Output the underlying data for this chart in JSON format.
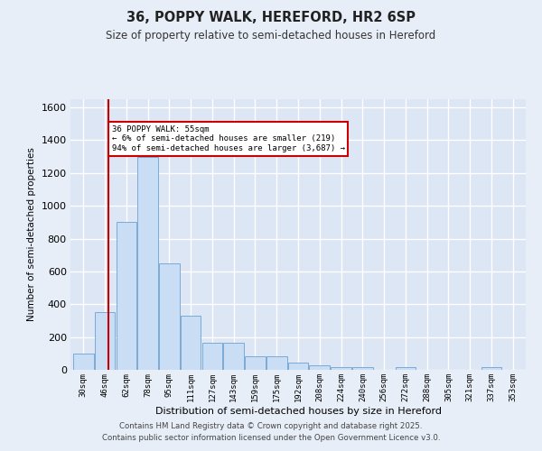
{
  "title": "36, POPPY WALK, HEREFORD, HR2 6SP",
  "subtitle": "Size of property relative to semi-detached houses in Hereford",
  "xlabel": "Distribution of semi-detached houses by size in Hereford",
  "ylabel": "Number of semi-detached properties",
  "categories": [
    "30sqm",
    "46sqm",
    "62sqm",
    "78sqm",
    "95sqm",
    "111sqm",
    "127sqm",
    "143sqm",
    "159sqm",
    "175sqm",
    "192sqm",
    "208sqm",
    "224sqm",
    "240sqm",
    "256sqm",
    "272sqm",
    "288sqm",
    "305sqm",
    "321sqm",
    "337sqm",
    "353sqm"
  ],
  "bar_heights": [
    100,
    350,
    900,
    1300,
    650,
    330,
    165,
    165,
    80,
    80,
    45,
    25,
    15,
    15,
    0,
    15,
    0,
    0,
    0,
    15,
    0
  ],
  "bar_color": "#c9ddf5",
  "bar_edge_color": "#7baad4",
  "red_line_x": 1.18,
  "annotation_text": "36 POPPY WALK: 55sqm\n← 6% of semi-detached houses are smaller (219)\n94% of semi-detached houses are larger (3,687) →",
  "annotation_box_color": "#ffffff",
  "annotation_border_color": "#cc0000",
  "ylim": [
    0,
    1650
  ],
  "yticks": [
    0,
    200,
    400,
    600,
    800,
    1000,
    1200,
    1400,
    1600
  ],
  "background_color": "#e8eef8",
  "plot_bg_color": "#dce6f5",
  "grid_color": "#ffffff",
  "footer_line1": "Contains HM Land Registry data © Crown copyright and database right 2025.",
  "footer_line2": "Contains public sector information licensed under the Open Government Licence v3.0."
}
